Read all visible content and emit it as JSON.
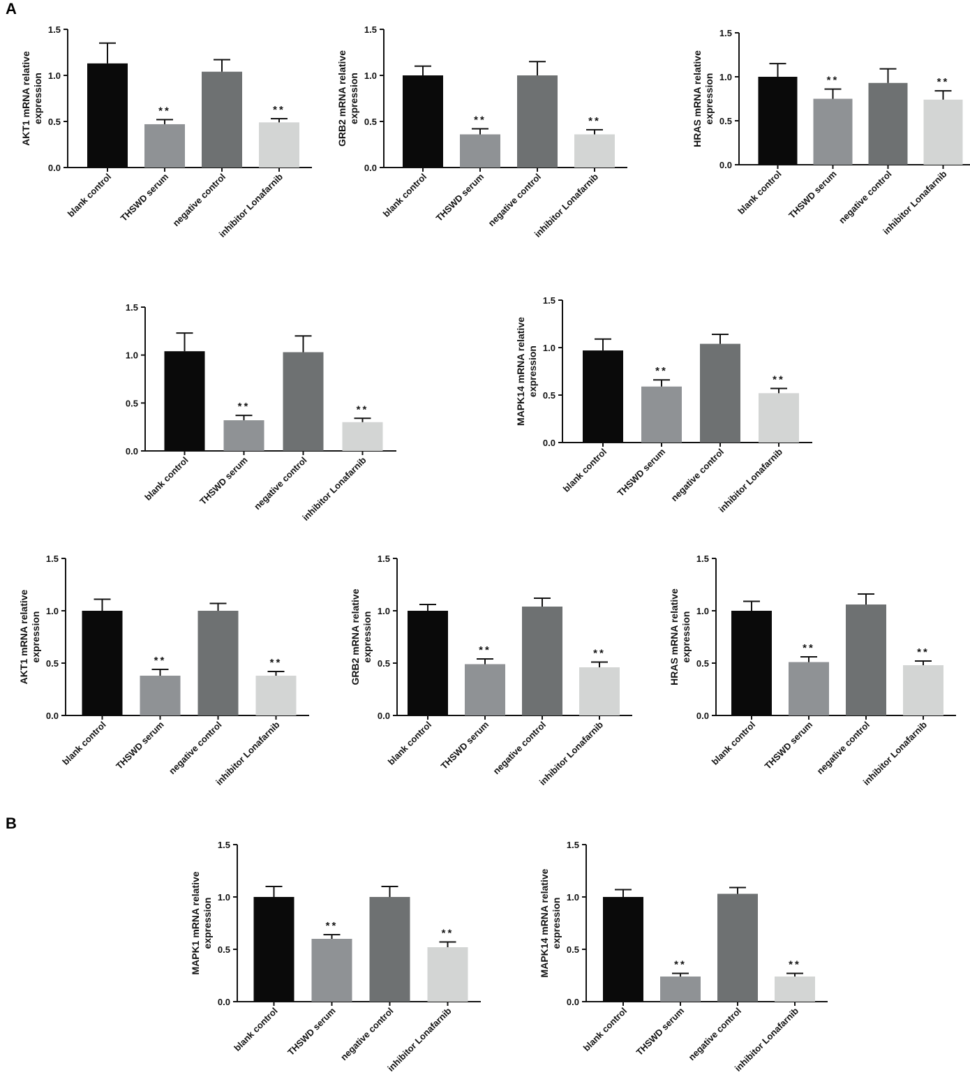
{
  "panels": {
    "a": "A",
    "b": "B"
  },
  "colors": {
    "blank": "#0a0a0a",
    "thswd": "#8f9295",
    "negative": "#6e7172",
    "inhibitor": "#d3d5d4",
    "axis": "#111111"
  },
  "chart_data": [
    {
      "type": "bar",
      "panel": "A",
      "ylabel": "AKT1 mRNA relative expression",
      "ylim": [
        0,
        1.5
      ],
      "yticks": [
        "0.0",
        "0.5",
        "1.0",
        "1.5"
      ],
      "categories": [
        "blank control",
        "THSWD serum",
        "negative control",
        "inhibitor Lonafarnib"
      ],
      "values": [
        1.13,
        0.47,
        1.04,
        0.49
      ],
      "errors": [
        0.22,
        0.05,
        0.13,
        0.04
      ],
      "annotations": [
        "",
        "**",
        "",
        "**"
      ]
    },
    {
      "type": "bar",
      "panel": "A",
      "ylabel": "GRB2 mRNA relative expression",
      "ylim": [
        0,
        1.5
      ],
      "yticks": [
        "0.0",
        "0.5",
        "1.0",
        "1.5"
      ],
      "categories": [
        "blank control",
        "THSWD serum",
        "negative control",
        "inhibitor Lonafarnib"
      ],
      "values": [
        1.0,
        0.36,
        1.0,
        0.36
      ],
      "errors": [
        0.1,
        0.06,
        0.15,
        0.05
      ],
      "annotations": [
        "",
        "**",
        "",
        "**"
      ]
    },
    {
      "type": "bar",
      "panel": "A",
      "ylabel": "HRAS mRNA relative expression",
      "ylim": [
        0,
        1.5
      ],
      "yticks": [
        "0.0",
        "0.5",
        "1.0",
        "1.5"
      ],
      "categories": [
        "blank control",
        "THSWD serum",
        "negative control",
        "inhibitor Lonafarnib"
      ],
      "values": [
        1.0,
        0.75,
        0.93,
        0.74
      ],
      "errors": [
        0.15,
        0.11,
        0.16,
        0.1
      ],
      "annotations": [
        "",
        "**",
        "",
        "**"
      ]
    },
    {
      "type": "bar",
      "panel": "A",
      "ylabel": "",
      "ylim": [
        0,
        1.5
      ],
      "yticks": [
        "0.0",
        "0.5",
        "1.0",
        "1.5"
      ],
      "categories": [
        "blank control",
        "THSWD serum",
        "negative control",
        "inhibitor Lonafarnib"
      ],
      "values": [
        1.04,
        0.32,
        1.03,
        0.3
      ],
      "errors": [
        0.19,
        0.05,
        0.17,
        0.04
      ],
      "annotations": [
        "",
        "**",
        "",
        "**"
      ]
    },
    {
      "type": "bar",
      "panel": "A",
      "ylabel": "MAPK14 mRNA relative expression",
      "ylim": [
        0,
        1.5
      ],
      "yticks": [
        "0.0",
        "0.5",
        "1.0",
        "1.5"
      ],
      "categories": [
        "blank control",
        "THSWD serum",
        "negative control",
        "inhibitor Lonafarnib"
      ],
      "values": [
        0.97,
        0.59,
        1.04,
        0.52
      ],
      "errors": [
        0.12,
        0.07,
        0.1,
        0.05
      ],
      "annotations": [
        "",
        "**",
        "",
        "**"
      ]
    },
    {
      "type": "bar",
      "panel": "A",
      "ylabel": "AKT1 mRNA relative expression",
      "ylim": [
        0,
        1.5
      ],
      "yticks": [
        "0.0",
        "0.5",
        "1.0",
        "1.5"
      ],
      "categories": [
        "blank control",
        "THSWD serum",
        "negative control",
        "inhibitor Lonafarnib"
      ],
      "values": [
        1.0,
        0.38,
        1.0,
        0.38
      ],
      "errors": [
        0.11,
        0.06,
        0.07,
        0.04
      ],
      "annotations": [
        "",
        "**",
        "",
        "**"
      ]
    },
    {
      "type": "bar",
      "panel": "A",
      "ylabel": "GRB2 mRNA relative expression",
      "ylim": [
        0,
        1.5
      ],
      "yticks": [
        "0.0",
        "0.5",
        "1.0",
        "1.5"
      ],
      "categories": [
        "blank control",
        "THSWD serum",
        "negative control",
        "inhibitor Lonafarnib"
      ],
      "values": [
        1.0,
        0.49,
        1.04,
        0.46
      ],
      "errors": [
        0.06,
        0.05,
        0.08,
        0.05
      ],
      "annotations": [
        "",
        "**",
        "",
        "**"
      ]
    },
    {
      "type": "bar",
      "panel": "A",
      "ylabel": "HRAS mRNA relative expression",
      "ylim": [
        0,
        1.5
      ],
      "yticks": [
        "0.0",
        "0.5",
        "1.0",
        "1.5"
      ],
      "categories": [
        "blank control",
        "THSWD serum",
        "negative control",
        "inhibitor Lonafarnib"
      ],
      "values": [
        1.0,
        0.51,
        1.06,
        0.48
      ],
      "errors": [
        0.09,
        0.05,
        0.1,
        0.04
      ],
      "annotations": [
        "",
        "**",
        "",
        "**"
      ]
    },
    {
      "type": "bar",
      "panel": "B",
      "ylabel": "MAPK1 mRNA relative expression",
      "ylim": [
        0,
        1.5
      ],
      "yticks": [
        "0.0",
        "0.5",
        "1.0",
        "1.5"
      ],
      "categories": [
        "blank control",
        "THSWD serum",
        "negative control",
        "inhibitor Lonafarnib"
      ],
      "values": [
        1.0,
        0.6,
        1.0,
        0.52
      ],
      "errors": [
        0.1,
        0.04,
        0.1,
        0.05
      ],
      "annotations": [
        "",
        "**",
        "",
        "**"
      ]
    },
    {
      "type": "bar",
      "panel": "B",
      "ylabel": "MAPK14 mRNA relative expression",
      "ylim": [
        0,
        1.5
      ],
      "yticks": [
        "0.0",
        "0.5",
        "1.0",
        "1.5"
      ],
      "categories": [
        "blank control",
        "THSWD serum",
        "negative control",
        "inhibitor Lonafarnib"
      ],
      "values": [
        1.0,
        0.24,
        1.03,
        0.24
      ],
      "errors": [
        0.07,
        0.03,
        0.06,
        0.03
      ],
      "annotations": [
        "",
        "**",
        "",
        "**"
      ]
    }
  ]
}
